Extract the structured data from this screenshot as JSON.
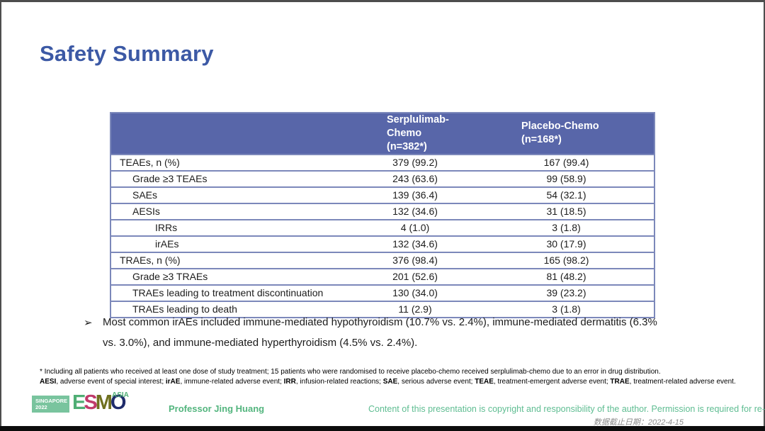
{
  "slide": {
    "title": "Safety Summary",
    "accent_color": "#3C59A5"
  },
  "table": {
    "header_bg": "#5866A9",
    "border_color": "#7C88BA",
    "header": {
      "col2": {
        "line1": "Serplulimab-Chemo",
        "line2": "(n=382*)"
      },
      "col3": {
        "line1": "Placebo-Chemo",
        "line2": "(n=168*)"
      }
    },
    "rows": [
      {
        "label": "TEAEs, n (%)",
        "indent": 0,
        "serplulimab": "379 (99.2)",
        "placebo": "167 (99.4)"
      },
      {
        "label": "Grade ≥3 TEAEs",
        "indent": 1,
        "serplulimab": "243 (63.6)",
        "placebo": "99 (58.9)"
      },
      {
        "label": "SAEs",
        "indent": 1,
        "serplulimab": "139 (36.4)",
        "placebo": "54 (32.1)"
      },
      {
        "label": "AESIs",
        "indent": 1,
        "serplulimab": "132 (34.6)",
        "placebo": "31 (18.5)"
      },
      {
        "label": "IRRs",
        "indent": 2,
        "serplulimab": "4 (1.0)",
        "placebo": "3 (1.8)"
      },
      {
        "label": "irAEs",
        "indent": 2,
        "serplulimab": "132 (34.6)",
        "placebo": "30 (17.9)"
      },
      {
        "label": "TRAEs, n (%)",
        "indent": 0,
        "serplulimab": "376 (98.4)",
        "placebo": "165 (98.2)"
      },
      {
        "label": "Grade ≥3 TRAEs",
        "indent": 1,
        "serplulimab": "201 (52.6)",
        "placebo": "81 (48.2)"
      },
      {
        "label": "TRAEs leading to treatment discontinuation",
        "indent": 1,
        "serplulimab": "130 (34.0)",
        "placebo": "39 (23.2)"
      },
      {
        "label": "TRAEs leading to death",
        "indent": 1,
        "serplulimab": "11 (2.9)",
        "placebo": "3 (1.8)"
      }
    ]
  },
  "bullet": {
    "marker": "➢",
    "text": "Most common irAEs included immune-mediated hypothyroidism (10.7% vs. 2.4%), immune-mediated dermatitis (6.3% vs. 3.0%), and immune-mediated hyperthyroidism (4.5% vs. 2.4%)."
  },
  "footnotes": {
    "line1": "* Including all patients who received at least one dose of study treatment; 15 patients who were randomised to receive placebo-chemo received serplulimab-chemo due to an error in drug distribution.",
    "line2_segments": [
      {
        "t": "AESI",
        "b": true
      },
      {
        "t": ", adverse event of special interest; ",
        "b": false
      },
      {
        "t": "irAE",
        "b": true
      },
      {
        "t": ", immune-related adverse event; ",
        "b": false
      },
      {
        "t": "IRR",
        "b": true
      },
      {
        "t": ", infusion-related reactions; ",
        "b": false
      },
      {
        "t": "SAE",
        "b": true
      },
      {
        "t": ", serious adverse event; ",
        "b": false
      },
      {
        "t": "TEAE",
        "b": true
      },
      {
        "t": ", treatment-emergent adverse event; ",
        "b": false
      },
      {
        "t": "TRAE",
        "b": true
      },
      {
        "t": ", treatment-related adverse event.",
        "b": false
      }
    ]
  },
  "footer": {
    "logo": {
      "badge_line1": "SINGAPORE",
      "badge_line2": "2022",
      "badge_bg": "#79C49E",
      "letters": [
        {
          "ch": "E",
          "color": "#4FAE74"
        },
        {
          "ch": "S",
          "color": "#C03A6B"
        },
        {
          "ch": "M",
          "color": "#6F701F"
        },
        {
          "ch": "O",
          "color": "#1F2C6B"
        }
      ],
      "region": "ASIA"
    },
    "presenter": "Professor Jing Huang",
    "copyright": "Content of this presentation is copyright and responsibility of the author. Permission is required for re-use.",
    "data_cutoff": "数据截止日期：2022-4-15",
    "green": "#53B57E"
  }
}
